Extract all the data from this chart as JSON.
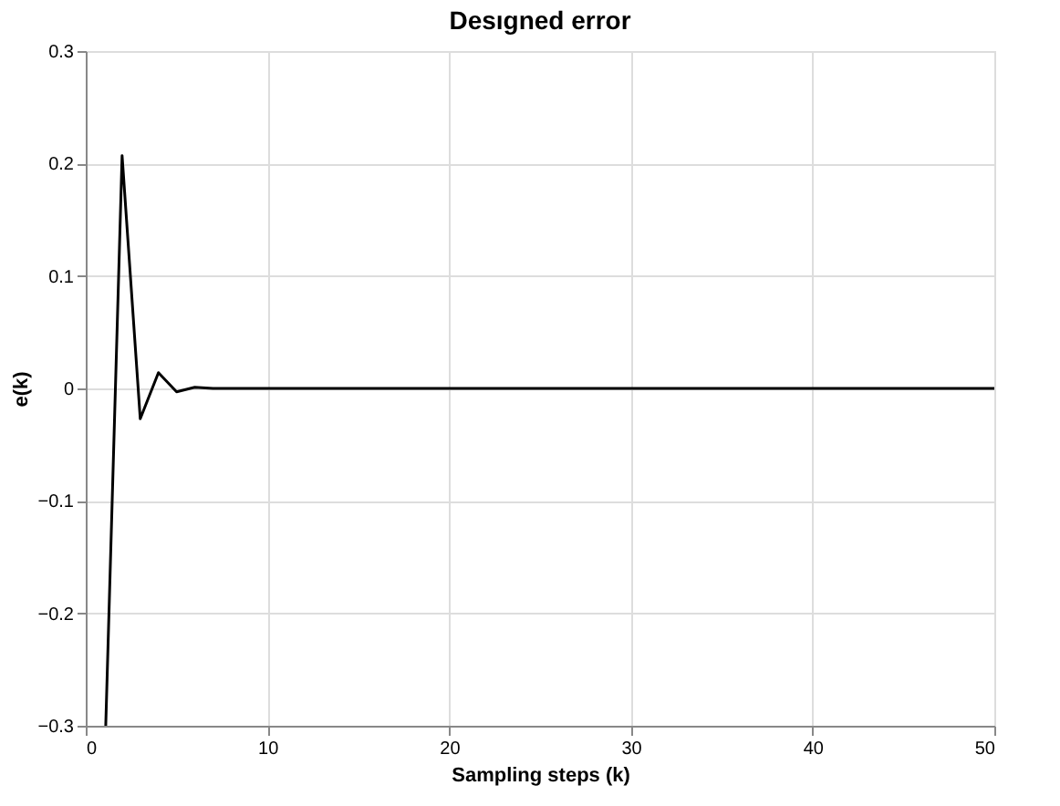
{
  "chart_data": {
    "type": "line",
    "title": "Desıgned error",
    "xlabel": "Sampling steps (k)",
    "ylabel": "e(k)",
    "x": [
      1.1,
      2,
      3,
      4,
      5,
      6,
      7,
      8,
      10,
      20,
      30,
      40,
      50
    ],
    "series": [
      {
        "color": "#000000",
        "values": [
          -0.3,
          0.207,
          -0.027,
          0.014,
          -0.003,
          0.001,
          0,
          0,
          0,
          0,
          0,
          0,
          0
        ]
      }
    ],
    "xlim": [
      0,
      50
    ],
    "xticks": [
      0,
      10,
      20,
      30,
      40,
      50
    ],
    "ylim": [
      -0.3,
      0.3
    ],
    "yticks": [
      -0.3,
      -0.2,
      -0.1,
      0,
      0.1,
      0.2,
      0.3
    ],
    "grid": true,
    "marker": "none",
    "line_style": "solid"
  }
}
